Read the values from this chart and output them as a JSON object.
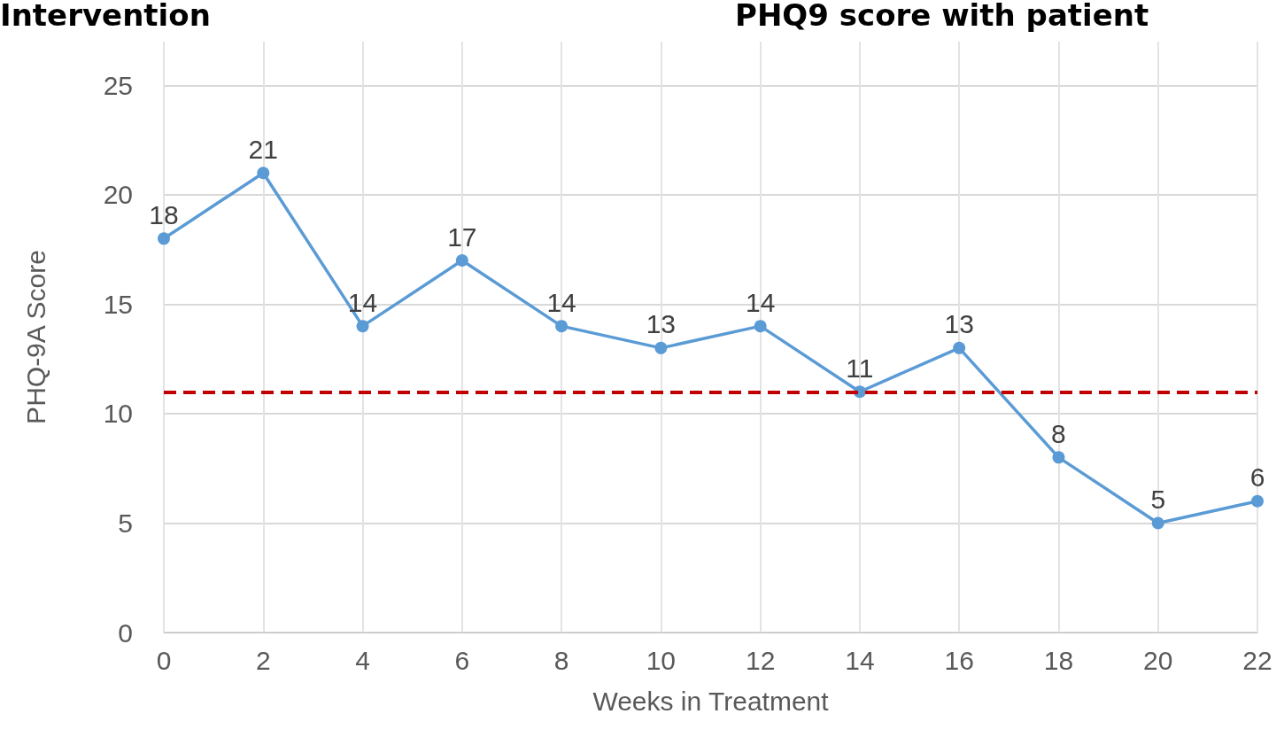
{
  "chart_data": {
    "type": "line",
    "xlabel": "Weeks in Treatment",
    "ylabel": "PHQ-9A Score",
    "annotations": [
      "Intervention",
      "PHQ9 score with patient"
    ],
    "x": [
      0,
      2,
      4,
      6,
      8,
      10,
      12,
      14,
      16,
      18,
      20,
      22
    ],
    "series": [
      {
        "color": "#5b9bd5",
        "values": [
          18,
          21,
          14,
          17,
          14,
          13,
          14,
          11,
          13,
          8,
          5,
          6
        ]
      }
    ],
    "xlim": [
      0,
      22
    ],
    "xticks": [
      0,
      2,
      4,
      6,
      8,
      10,
      12,
      14,
      16,
      18,
      20,
      22
    ],
    "ylim": [
      0,
      27
    ],
    "yticks": [
      0,
      5,
      10,
      15,
      20,
      25
    ],
    "ref_lines": [
      {
        "axis": "y",
        "value": 11,
        "color": "#c00000",
        "line_style": "dashed"
      }
    ],
    "grid": true,
    "data_labels": true,
    "marker": "circle",
    "line_style": "solid"
  }
}
